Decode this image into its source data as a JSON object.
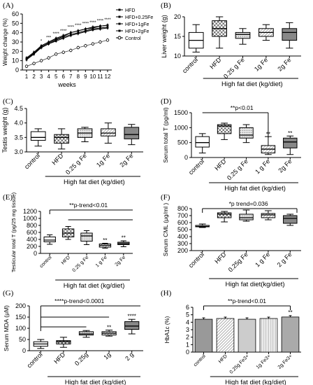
{
  "chart_data": [
    {
      "panel": "(A)",
      "type": "line",
      "xlabel": "weeks",
      "ylabel": "Weight change (%)",
      "x": [
        1,
        2,
        3,
        4,
        5,
        6,
        7,
        8,
        9,
        10,
        11,
        12
      ],
      "xticks": [
        "1",
        "2",
        "3",
        "4",
        "5",
        "6",
        "7",
        "8",
        "9",
        "10",
        "11",
        "12"
      ],
      "ylim": [
        0,
        60
      ],
      "yticks": [
        "0",
        "10",
        "20",
        "30",
        "40",
        "50",
        "60"
      ],
      "series": [
        {
          "name": "HFD",
          "values": [
            12,
            18,
            25,
            29,
            33,
            36,
            40,
            42,
            44,
            45,
            47,
            48
          ]
        },
        {
          "name": "HFD+0.25Fe",
          "values": [
            13,
            19,
            26,
            30,
            34,
            37,
            40,
            42,
            44,
            46,
            47,
            48
          ]
        },
        {
          "name": "HFD+1gFe",
          "values": [
            11,
            17,
            24,
            28,
            32,
            35,
            38,
            40,
            42,
            44,
            45,
            46
          ]
        },
        {
          "name": "HFD+2gFe",
          "values": [
            12,
            18,
            24,
            28,
            31,
            34,
            37,
            39,
            41,
            43,
            44,
            45
          ]
        },
        {
          "name": "Control",
          "values": [
            4,
            7,
            10,
            13,
            17,
            19,
            21,
            24,
            26,
            28,
            30,
            32
          ]
        }
      ],
      "annotations": [
        "*",
        "***",
        "****",
        "****",
        "****",
        "****",
        "****",
        "****",
        "****",
        "****"
      ]
    },
    {
      "panel": "(B)",
      "type": "box",
      "ylabel": "Liver weight (g)",
      "group_label": "High fat diet (kg/diet)",
      "ylim": [
        10,
        20
      ],
      "yticks": [
        "10",
        "15",
        "20"
      ],
      "categories": [
        "control",
        "HFD",
        "0.25 g Fe",
        "1g Fe",
        "2g Fe"
      ],
      "boxes": [
        [
          11,
          12,
          14,
          16,
          18
        ],
        [
          12,
          15,
          17,
          19,
          20
        ],
        [
          13,
          14.5,
          15.5,
          16,
          17
        ],
        [
          14,
          15,
          16,
          17,
          18
        ],
        [
          12,
          14,
          16,
          17,
          18.5
        ]
      ]
    },
    {
      "panel": "(C)",
      "type": "box",
      "ylabel": "Testis weight (g)",
      "group_label": "High fat diet (kg/diet)",
      "ylim": [
        3.0,
        4.5
      ],
      "yticks": [
        "3.0",
        "3.5",
        "4.0",
        "4.5"
      ],
      "categories": [
        "control",
        "HFD",
        "0.25 g Fe",
        "1g Fe",
        "2g Fe"
      ],
      "boxes": [
        [
          3.2,
          3.4,
          3.5,
          3.7,
          3.8
        ],
        [
          3.1,
          3.3,
          3.5,
          3.6,
          3.8
        ],
        [
          3.35,
          3.5,
          3.65,
          3.8,
          3.85
        ],
        [
          3.3,
          3.55,
          3.65,
          3.8,
          4.0
        ],
        [
          3.25,
          3.45,
          3.6,
          3.85,
          3.95
        ]
      ]
    },
    {
      "panel": "(D)",
      "type": "box",
      "ylabel": "Serum total T (pg/ml)",
      "group_label": "High fat diet (kg/diet)",
      "ylim": [
        0,
        1500
      ],
      "yticks": [
        "0",
        "500",
        "1000",
        "1500"
      ],
      "categories": [
        "control",
        "HFD",
        "0.25 g Fe",
        "1 g Fe",
        "2g Fe"
      ],
      "boxes": [
        [
          150,
          350,
          500,
          700,
          800
        ],
        [
          600,
          800,
          1050,
          1100,
          1150
        ],
        [
          500,
          650,
          750,
          1000,
          1100
        ],
        [
          100,
          150,
          280,
          400,
          700
        ],
        [
          100,
          320,
          520,
          650,
          720
        ]
      ],
      "annotations": [
        "**p<0.01",
        "**",
        "**"
      ]
    },
    {
      "panel": "(E)",
      "type": "box",
      "ylabel": "Testicular total T (pg/25 mg tissue)",
      "group_label": "High fat diet (kg/diet)",
      "ylim": [
        0,
        1200
      ],
      "yticks": [
        "0",
        "200",
        "400",
        "600",
        "800",
        "1000",
        "1200"
      ],
      "categories": [
        "control",
        "HFD",
        "0.25 g Fe",
        "1 g Fe",
        "2g Fe"
      ],
      "boxes": [
        [
          260,
          330,
          380,
          470,
          530
        ],
        [
          400,
          470,
          580,
          700,
          770
        ],
        [
          250,
          350,
          500,
          580,
          650
        ],
        [
          150,
          180,
          230,
          270,
          290
        ],
        [
          190,
          250,
          280,
          320,
          360
        ]
      ],
      "annotations": [
        "**p-trend<0.01",
        "**",
        "**"
      ]
    },
    {
      "panel": "(F)",
      "type": "box",
      "ylabel": "Serum CML (μg/ml )",
      "group_label": "High fat diet(kg/diet)",
      "ylim": [
        200,
        800
      ],
      "yticks": [
        "200",
        "300",
        "400",
        "500",
        "600",
        "700",
        "800"
      ],
      "categories": [
        "control",
        "HFD",
        "0.25g Fe",
        "1 g Fe",
        "2 g Fe"
      ],
      "boxes": [
        [
          530,
          540,
          545,
          560,
          580
        ],
        [
          610,
          670,
          720,
          740,
          760
        ],
        [
          620,
          640,
          670,
          720,
          780
        ],
        [
          640,
          670,
          710,
          730,
          770
        ],
        [
          560,
          590,
          660,
          700,
          720
        ]
      ],
      "annotations": [
        "*p trend=0.036"
      ]
    },
    {
      "panel": "(G)",
      "type": "box",
      "ylabel": "Serum MDA (μM)",
      "group_label": "High fat diet (kg/diet)",
      "ylim": [
        0,
        200
      ],
      "yticks": [
        "0",
        "50",
        "100",
        "150",
        "200"
      ],
      "categories": [
        "control",
        "HFD",
        "0.25g",
        "1g",
        "2 g"
      ],
      "boxes": [
        [
          10,
          20,
          30,
          40,
          50
        ],
        [
          15,
          30,
          40,
          45,
          60
        ],
        [
          60,
          70,
          75,
          85,
          90
        ],
        [
          65,
          70,
          78,
          85,
          92
        ],
        [
          75,
          95,
          110,
          130,
          140
        ]
      ],
      "annotations": [
        "****p-trend<0.0001",
        "**",
        "****"
      ]
    },
    {
      "panel": "(H)",
      "type": "bar",
      "ylabel": "HbA1c (%)",
      "group_label": "High fat diet (kg/diet)",
      "ylim": [
        0,
        6
      ],
      "yticks": [
        "0",
        "1",
        "2",
        "3",
        "4",
        "5",
        "6"
      ],
      "categories": [
        "control",
        "HFD",
        "0.25g Fe3+",
        "1g Fe3+",
        "2g Fe3+"
      ],
      "values": [
        4.4,
        4.5,
        4.4,
        4.5,
        4.7
      ],
      "annotations": [
        "**p-trend<0.01",
        "**"
      ]
    }
  ]
}
